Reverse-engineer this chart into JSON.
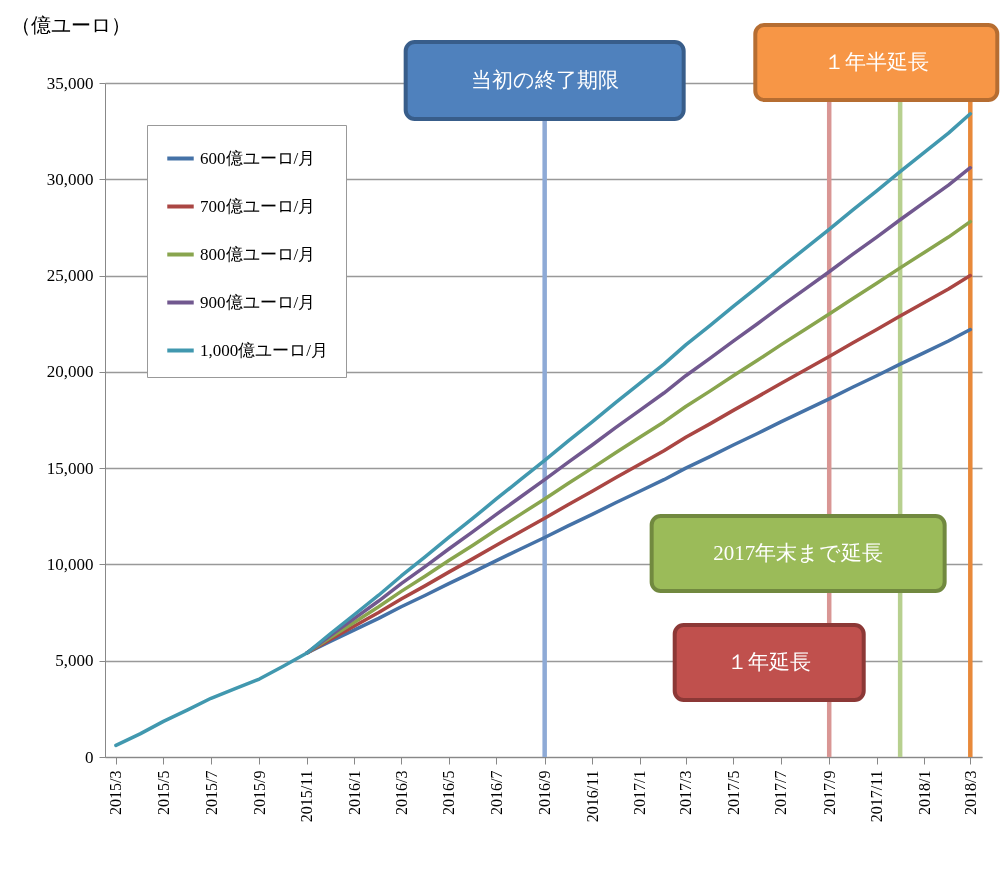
{
  "chart_data": {
    "type": "line",
    "ylabel": "（億ユーロ）",
    "x": [
      "2015-03",
      "2015-04",
      "2015-05",
      "2015-06",
      "2015-07",
      "2015-08",
      "2015-09",
      "2015-10",
      "2015-11",
      "2015-12",
      "2016-01",
      "2016-02",
      "2016-03",
      "2016-04",
      "2016-05",
      "2016-06",
      "2016-07",
      "2016-08",
      "2016-09",
      "2016-10",
      "2016-11",
      "2016-12",
      "2017-01",
      "2017-02",
      "2017-03",
      "2017-04",
      "2017-05",
      "2017-06",
      "2017-07",
      "2017-08",
      "2017-09",
      "2017-10",
      "2017-11",
      "2017-12",
      "2018-01",
      "2018-02",
      "2018-03"
    ],
    "series": [
      {
        "name": "600億ユーロ/月",
        "color": "#4572a7",
        "values": [
          null,
          null,
          null,
          null,
          null,
          null,
          null,
          null,
          5400,
          6000,
          6600,
          7200,
          7800,
          8400,
          9000,
          9600,
          10200,
          10800,
          11400,
          12000,
          12600,
          13200,
          13800,
          14400,
          15000,
          15600,
          16200,
          16800,
          17400,
          18000,
          18600,
          19200,
          19800,
          20400,
          21000,
          21600,
          22200
        ]
      },
      {
        "name": "700億ユーロ/月",
        "color": "#aa4643",
        "values": [
          null,
          null,
          null,
          null,
          null,
          null,
          null,
          null,
          5400,
          6100,
          6800,
          7500,
          8200,
          8900,
          9600,
          10300,
          11000,
          11700,
          12400,
          13100,
          13800,
          14500,
          15200,
          15900,
          16600,
          17300,
          18000,
          18700,
          19400,
          20100,
          20800,
          21500,
          22200,
          22900,
          23600,
          24300,
          25000
        ]
      },
      {
        "name": "800億ユーロ/月",
        "color": "#89a54e",
        "values": [
          null,
          null,
          null,
          null,
          null,
          null,
          null,
          null,
          5400,
          6200,
          7000,
          7800,
          8600,
          9400,
          10200,
          11000,
          11800,
          12600,
          13400,
          14200,
          15000,
          15800,
          16600,
          17400,
          18200,
          19000,
          19800,
          20600,
          21400,
          22200,
          23000,
          23800,
          24600,
          25400,
          26200,
          27000,
          27800
        ]
      },
      {
        "name": "900億ユーロ/月",
        "color": "#71588f",
        "values": [
          null,
          null,
          null,
          null,
          null,
          null,
          null,
          null,
          5400,
          6300,
          7200,
          8100,
          9000,
          9900,
          10800,
          11700,
          12600,
          13500,
          14400,
          15300,
          16200,
          17100,
          18000,
          18900,
          19800,
          20700,
          21600,
          22500,
          23400,
          24300,
          25200,
          26100,
          27000,
          27900,
          28800,
          29700,
          30600
        ]
      },
      {
        "name": "1,000億ユーロ/月",
        "color": "#4198af",
        "values": [
          600,
          1200,
          1850,
          2450,
          3050,
          3550,
          4050,
          4700,
          5400,
          6400,
          7400,
          8400,
          9400,
          10400,
          11400,
          12400,
          13400,
          14400,
          15400,
          16400,
          17400,
          18400,
          19400,
          20400,
          21400,
          22400,
          23400,
          24400,
          25400,
          26400,
          27400,
          28400,
          29400,
          30400,
          31400,
          32400,
          33400
        ]
      }
    ],
    "xlim": [
      "2015-02-15",
      "2018-03-16"
    ],
    "xticks": [
      {
        "value": "2015-03",
        "label": "2015/3"
      },
      {
        "value": "2015-05",
        "label": "2015/5"
      },
      {
        "value": "2015-07",
        "label": "2015/7"
      },
      {
        "value": "2015-09",
        "label": "2015/9"
      },
      {
        "value": "2015-11",
        "label": "2015/11"
      },
      {
        "value": "2016-01",
        "label": "2016/1"
      },
      {
        "value": "2016-03",
        "label": "2016/3"
      },
      {
        "value": "2016-05",
        "label": "2016/5"
      },
      {
        "value": "2016-07",
        "label": "2016/7"
      },
      {
        "value": "2016-09",
        "label": "2016/9"
      },
      {
        "value": "2016-11",
        "label": "2016/11"
      },
      {
        "value": "2017-01",
        "label": "2017/1"
      },
      {
        "value": "2017-03",
        "label": "2017/3"
      },
      {
        "value": "2017-05",
        "label": "2017/5"
      },
      {
        "value": "2017-07",
        "label": "2017/7"
      },
      {
        "value": "2017-09",
        "label": "2017/9"
      },
      {
        "value": "2017-11",
        "label": "2017/11"
      },
      {
        "value": "2018-01",
        "label": "2018/1"
      },
      {
        "value": "2018-03",
        "label": "2018/3"
      }
    ],
    "ylim": [
      0,
      35000
    ],
    "yticks": [
      0,
      {
        "value": 5000,
        "label": "5,000"
      },
      {
        "value": 10000,
        "label": "10,000"
      },
      {
        "value": 15000,
        "label": "15,000"
      },
      {
        "value": 20000,
        "label": "20,000"
      },
      {
        "value": 25000,
        "label": "25,000"
      },
      {
        "value": 30000,
        "label": "30,000"
      },
      {
        "value": 35000,
        "label": "35,000"
      }
    ],
    "ref_lines": [
      {
        "axis": "x",
        "value": "2016-09",
        "label": "当初の終了期限",
        "color": "#8eaad6"
      },
      {
        "axis": "x",
        "value": "2017-09",
        "label": "１年延長",
        "color": "#d99694"
      },
      {
        "axis": "x",
        "value": "2017-12",
        "label": "2017年末まで延長",
        "color": "#b7d08f"
      },
      {
        "axis": "x",
        "value": "2018-03",
        "label": "１年半延長",
        "color": "#e8893a"
      }
    ],
    "grid": "y",
    "legend": "top left",
    "marker": "none",
    "line_style": "solid"
  }
}
